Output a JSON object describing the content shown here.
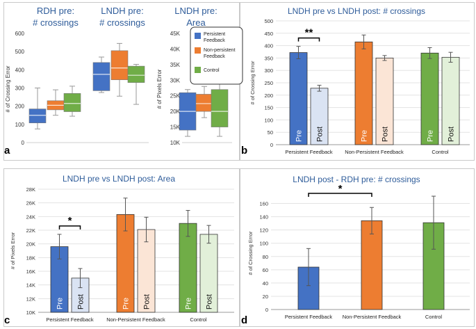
{
  "panel_labels": {
    "a": "a",
    "b": "b",
    "c": "c",
    "d": "d"
  },
  "colors": {
    "persistent_pre": "#4472c4",
    "persistent_post": "#dae3f3",
    "nonpersistent_pre": "#ed7d31",
    "nonpersistent_post": "#fbe5d6",
    "control_pre": "#70ad47",
    "control_post": "#e2f0d9",
    "title": "#2e5c9a"
  },
  "chart_data": [
    {
      "id": "a1",
      "type": "box",
      "title_lines": [
        "RDH pre:",
        "# crossings"
      ],
      "ylabel": "# of Crossing Error",
      "ylim": [
        0,
        600
      ],
      "yticks": [
        "0",
        "100",
        "200",
        "300",
        "400",
        "500",
        "600"
      ],
      "series": [
        {
          "name": "Persistent Feedback",
          "whisker_low": 75,
          "q1": 108,
          "median": 150,
          "q3": 185,
          "whisker_high": 300
        },
        {
          "name": "Non-persistent Feedback",
          "whisker_low": 150,
          "q1": 180,
          "median": 205,
          "q3": 230,
          "whisker_high": 290
        },
        {
          "name": "Control",
          "whisker_low": 145,
          "q1": 170,
          "median": 215,
          "q3": 270,
          "whisker_high": 310
        }
      ]
    },
    {
      "id": "a2",
      "type": "box",
      "title_lines": [
        "LNDH pre:",
        "# crossings"
      ],
      "ylim": [
        0,
        600
      ],
      "series": [
        {
          "name": "Persistent Feedback",
          "whisker_low": 275,
          "q1": 285,
          "median": 375,
          "q3": 440,
          "whisker_high": 470
        },
        {
          "name": "Non-persistent Feedback",
          "whisker_low": 255,
          "q1": 345,
          "median": 410,
          "q3": 505,
          "whisker_high": 545
        },
        {
          "name": "Control",
          "whisker_low": 210,
          "q1": 330,
          "median": 370,
          "q3": 420,
          "whisker_high": 430
        }
      ]
    },
    {
      "id": "a3",
      "type": "box",
      "title_lines": [
        "LNDH pre:",
        "Area"
      ],
      "ylabel": "# of Pixels Error",
      "ylim": [
        10000,
        45000
      ],
      "yticks": [
        "10K",
        "15K",
        "20K",
        "25K",
        "30K",
        "35K",
        "40K",
        "45K"
      ],
      "legend": [
        "Persistent Feedback",
        "Non-persistent Feedback",
        "Control"
      ],
      "series": [
        {
          "name": "Persistent Feedback",
          "whisker_low": 12000,
          "q1": 14000,
          "median": 20000,
          "q3": 26000,
          "whisker_high": 27000
        },
        {
          "name": "Non-persistent Feedback",
          "whisker_low": 18000,
          "q1": 20000,
          "median": 22500,
          "q3": 25500,
          "whisker_high": 28000
        },
        {
          "name": "Control",
          "whisker_low": 12000,
          "q1": 15000,
          "median": 20000,
          "q3": 27000,
          "whisker_high": 29000
        }
      ]
    },
    {
      "id": "b",
      "type": "bar",
      "title": "LNDH pre vs LNDH post: # crossings",
      "ylabel": "# of Crossing Error",
      "ylim": [
        0,
        500
      ],
      "yticks": [
        "0",
        "50",
        "100",
        "150",
        "200",
        "250",
        "300",
        "350",
        "400",
        "450",
        "500"
      ],
      "categories": [
        "Persistent Feedback",
        "Non-Persistent Feedback",
        "Control"
      ],
      "bar_labels": [
        "Pre",
        "Post"
      ],
      "values": [
        [
          372,
          228
        ],
        [
          415,
          350
        ],
        [
          370,
          353
        ]
      ],
      "errors": [
        [
          25,
          12
        ],
        [
          28,
          10
        ],
        [
          22,
          20
        ]
      ],
      "significance": [
        {
          "category": 0,
          "label": "**"
        }
      ]
    },
    {
      "id": "c",
      "type": "bar",
      "title": "LNDH pre vs LNDH post: Area",
      "ylabel": "# of Pixels Error",
      "ylim": [
        10000,
        28000
      ],
      "yticks": [
        "10K",
        "12K",
        "14K",
        "16K",
        "18K",
        "20K",
        "22K",
        "24K",
        "26K",
        "28K"
      ],
      "categories": [
        "Persistent Feedback",
        "Non-Persistent Feedback",
        "Control"
      ],
      "bar_labels": [
        "Pre",
        "Post"
      ],
      "values": [
        [
          19600,
          15000
        ],
        [
          24300,
          22100
        ],
        [
          23000,
          21400
        ]
      ],
      "errors": [
        [
          1800,
          1400
        ],
        [
          2400,
          1800
        ],
        [
          1900,
          1300
        ]
      ],
      "significance": [
        {
          "category": 0,
          "label": "*"
        }
      ]
    },
    {
      "id": "d",
      "type": "bar",
      "title": "LNDH post - RDH pre: # crossings",
      "ylabel": "# of Crossing Error",
      "ylim": [
        0,
        170
      ],
      "yticks": [
        "0",
        "20",
        "40",
        "60",
        "80",
        "100",
        "120",
        "140",
        "160"
      ],
      "categories": [
        "Persistent Feedback",
        "Non-Persistent Feedback",
        "Control"
      ],
      "values": [
        64,
        134,
        131
      ],
      "errors": [
        28,
        20,
        40
      ],
      "significance": [
        {
          "from": 0,
          "to": 1,
          "label": "*"
        }
      ]
    }
  ]
}
